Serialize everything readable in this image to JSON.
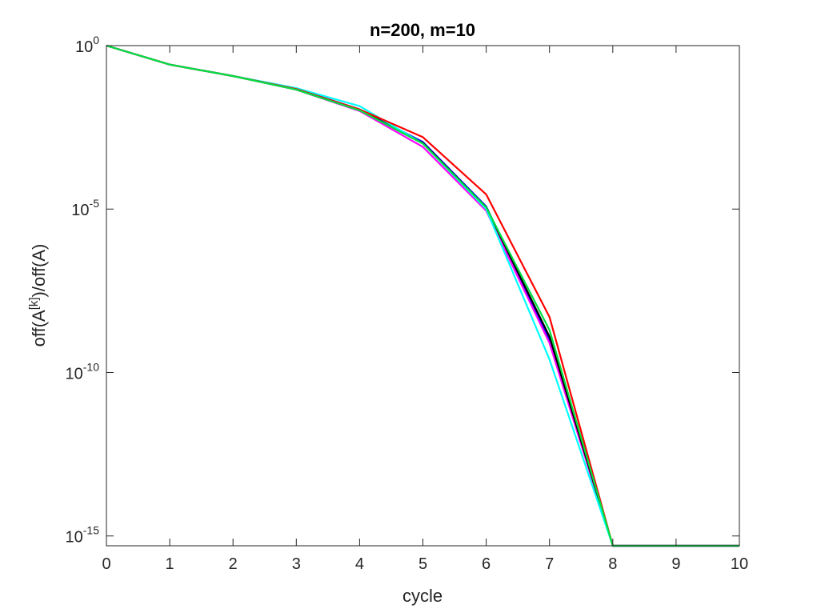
{
  "chart_data": {
    "type": "line",
    "title": "n=200, m=10",
    "xlabel": "cycle",
    "ylabel": {
      "base": "off(A",
      "superscript": "[k]",
      "suffix": ")/off(A)"
    },
    "xlim": [
      0,
      10
    ],
    "ylim_exponent": [
      -15.3,
      0
    ],
    "yscale": "log",
    "grid": false,
    "x_ticks": [
      "0",
      "1",
      "2",
      "3",
      "4",
      "5",
      "6",
      "7",
      "8",
      "9",
      "10"
    ],
    "y_ticks": [
      {
        "base": "10",
        "exp": "0",
        "value_exponent": 0
      },
      {
        "base": "10",
        "exp": "-5",
        "value_exponent": -5
      },
      {
        "base": "10",
        "exp": "-10",
        "value_exponent": -10
      },
      {
        "base": "10",
        "exp": "-15",
        "value_exponent": -15
      }
    ],
    "x": [
      0,
      1,
      2,
      3,
      4,
      5,
      6,
      7,
      8,
      9,
      10
    ],
    "series": [
      {
        "color": "#0000ff",
        "values_exponent": [
          0,
          -0.58,
          -0.93,
          -1.32,
          -1.95,
          -2.95,
          -4.92,
          -9.0,
          -15.3,
          -15.3,
          -15.3
        ]
      },
      {
        "color": "#ff00ff",
        "values_exponent": [
          0,
          -0.58,
          -0.93,
          -1.35,
          -2.0,
          -3.1,
          -5.05,
          -9.1,
          -15.3,
          -15.3,
          -15.3
        ]
      },
      {
        "color": "#000000",
        "values_exponent": [
          0,
          -0.58,
          -0.93,
          -1.33,
          -1.97,
          -2.98,
          -4.95,
          -8.9,
          -15.3,
          -15.3,
          -15.3
        ]
      },
      {
        "color": "#00ffff",
        "values_exponent": [
          0,
          -0.58,
          -0.93,
          -1.3,
          -1.85,
          -3.0,
          -5.0,
          -9.6,
          -15.3,
          -15.3,
          -15.3
        ]
      },
      {
        "color": "#ff0000",
        "values_exponent": [
          0,
          -0.58,
          -0.93,
          -1.33,
          -1.95,
          -2.8,
          -4.55,
          -8.3,
          -15.3,
          -15.3,
          -15.3
        ]
      },
      {
        "color": "#00e040",
        "values_exponent": [
          0,
          -0.58,
          -0.93,
          -1.35,
          -1.98,
          -3.0,
          -4.95,
          -8.7,
          -15.3,
          -15.3,
          -15.3
        ]
      }
    ]
  }
}
